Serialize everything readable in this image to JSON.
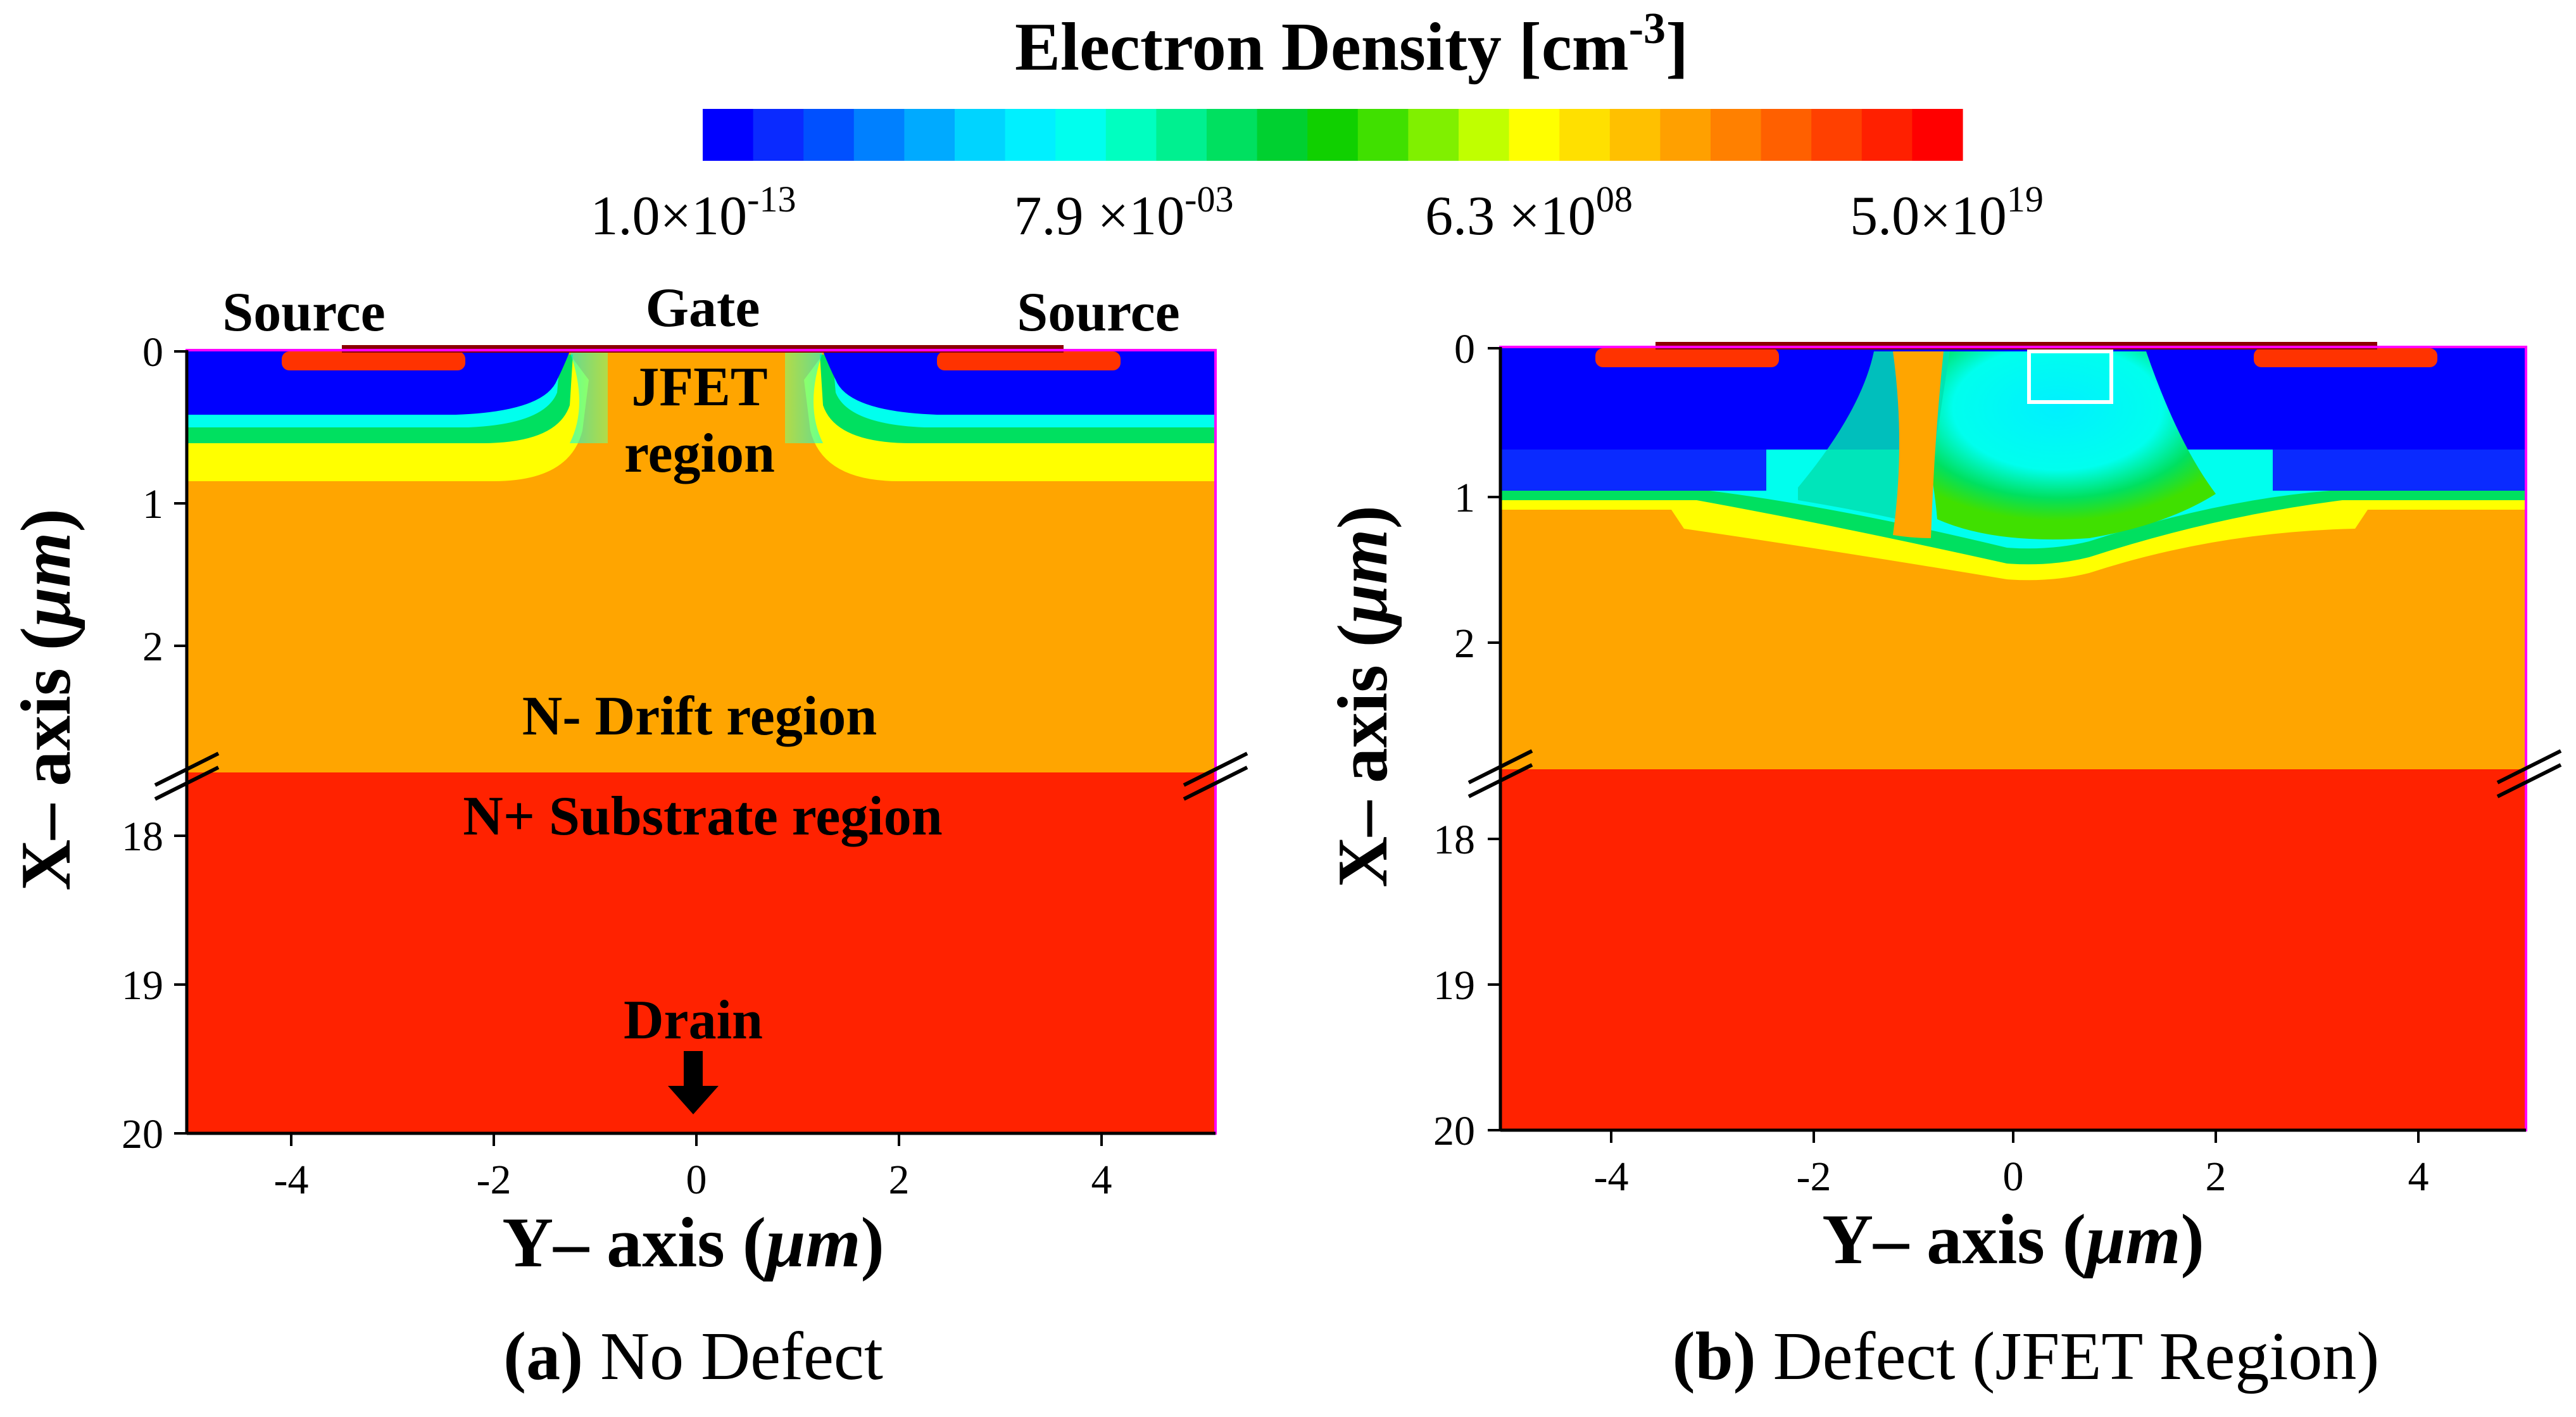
{
  "colorbar": {
    "title": "Electron Density [cm",
    "title_exp": "-3",
    "title_end": "]",
    "stops": [
      "#0000ff",
      "#0a2aff",
      "#0050ff",
      "#0080ff",
      "#00aaff",
      "#00d4ff",
      "#00f0ff",
      "#00ffee",
      "#00ffc0",
      "#00f090",
      "#00e060",
      "#00d030",
      "#10d000",
      "#40e000",
      "#80f000",
      "#c0ff00",
      "#ffff00",
      "#ffe000",
      "#ffc000",
      "#ffa000",
      "#ff8000",
      "#ff6000",
      "#ff4000",
      "#ff2000",
      "#ff0000"
    ],
    "ticks": [
      {
        "mant": "1.0×10",
        "exp": "-13"
      },
      {
        "mant": "7.9 ×10",
        "exp": "-03"
      },
      {
        "mant": "6.3 ×10",
        "exp": "08"
      },
      {
        "mant": "5.0×10",
        "exp": "19"
      }
    ]
  },
  "colors": {
    "insulator": "#0000ff",
    "drift": "#ffa500",
    "substrate": "#ff2200",
    "contact": "#8b0000",
    "source_implant": "#ff3300",
    "frame": "#ff00ff"
  },
  "panels": [
    {
      "caption_label": "(a)",
      "caption_text": " No Defect",
      "xlabel_text": "Y– axis (",
      "xlabel_mu": "μm",
      "xlabel_end": ")",
      "ylabel_text": "X– axis (",
      "ylabel_mu": "μm",
      "ylabel_end": ")",
      "x_ticks": [
        "-4",
        "-2",
        "0",
        "2",
        "4"
      ],
      "y_ticks_top": [
        "0",
        "1",
        "2"
      ],
      "y_ticks_bottom": [
        "18",
        "19",
        "20"
      ],
      "labels": {
        "source_left": "Source",
        "gate": "Gate",
        "source_right": "Source",
        "jfet_line1": "JFET",
        "jfet_line2": "region",
        "drift": "N- Drift region",
        "substrate": "N+ Substrate region",
        "drain": "Drain"
      }
    },
    {
      "caption_label": "(b)",
      "caption_text": " Defect (JFET Region)",
      "xlabel_text": "Y– axis (",
      "xlabel_mu": "μm",
      "xlabel_end": ")",
      "ylabel_text": "X– axis (",
      "ylabel_mu": "μm",
      "ylabel_end": ")",
      "x_ticks": [
        "-4",
        "-2",
        "0",
        "2",
        "4"
      ],
      "y_ticks_top": [
        "0",
        "1",
        "2"
      ],
      "y_ticks_bottom": [
        "18",
        "19",
        "20"
      ]
    }
  ]
}
